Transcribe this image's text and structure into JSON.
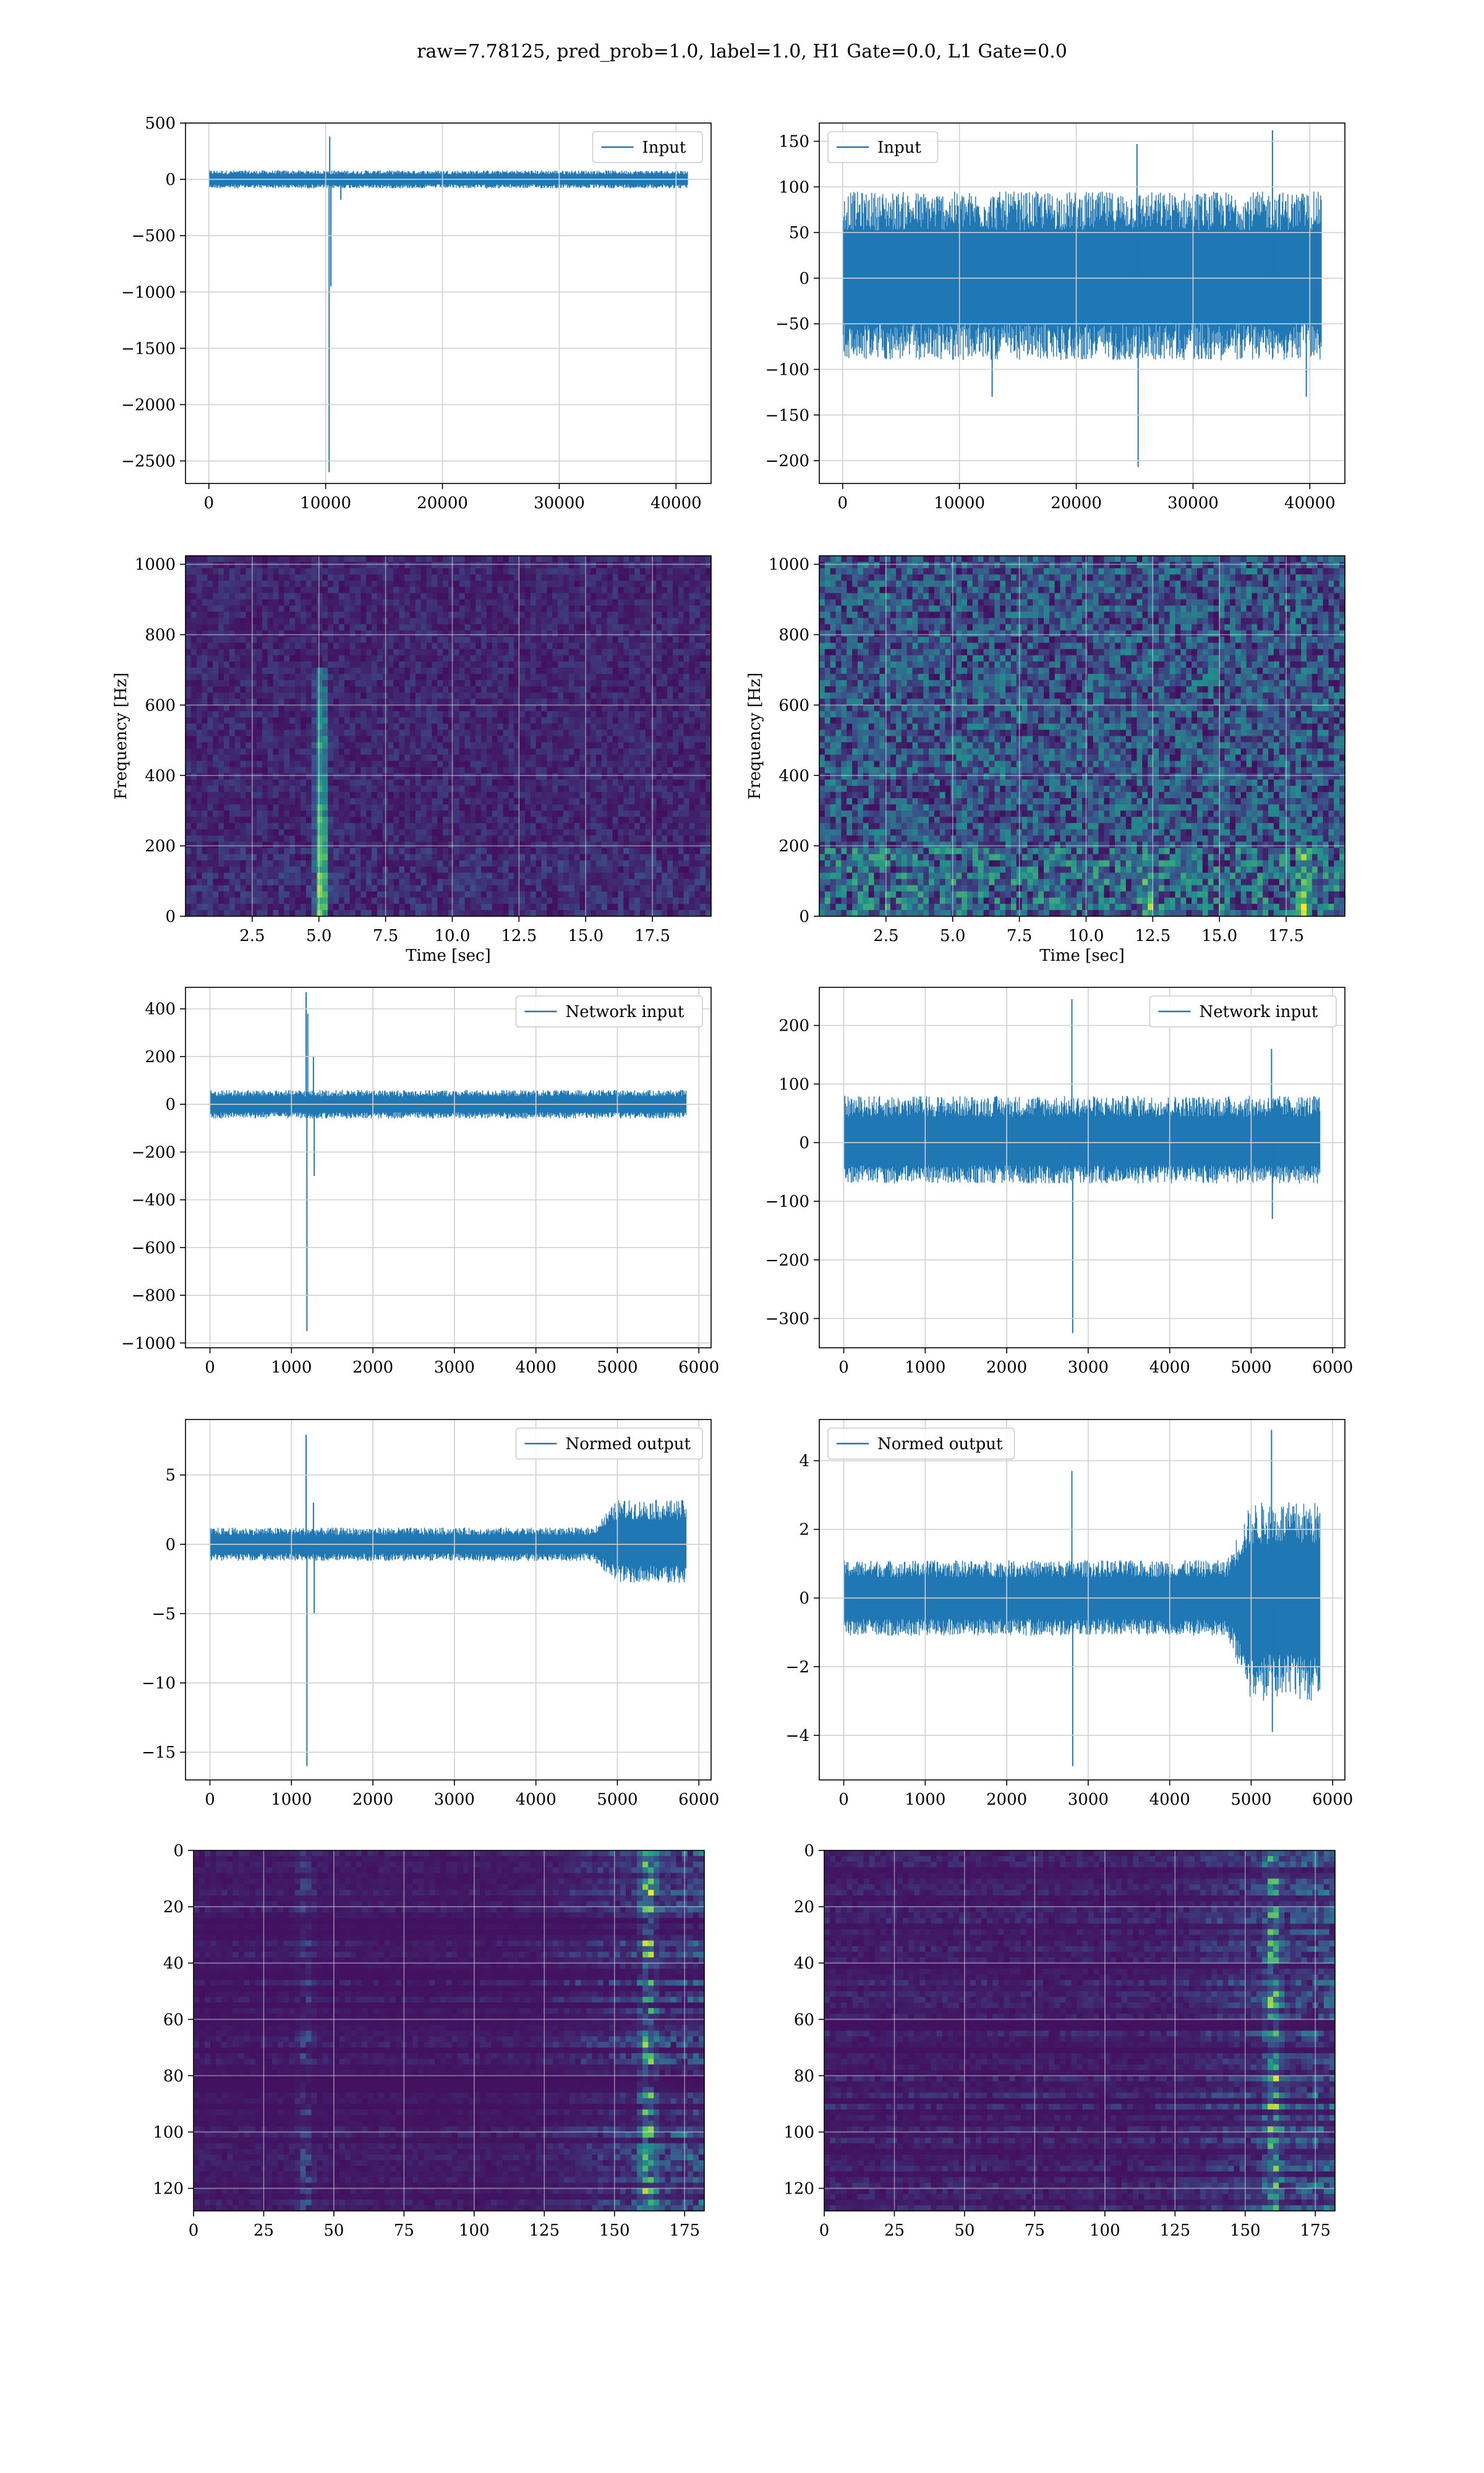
{
  "figure": {
    "title": "raw=7.78125, pred_prob=1.0, label=1.0, H1 Gate=0.0, L1 Gate=0.0"
  },
  "chart_data": [
    {
      "id": "h1-input",
      "type": "line",
      "legend": "Input",
      "xlim": [
        -2000,
        43000
      ],
      "ylim": [
        -2700,
        500
      ],
      "xticks": [
        0,
        10000,
        20000,
        30000,
        40000
      ],
      "xtick_labels": [
        "0",
        "10000",
        "20000",
        "30000",
        "40000"
      ],
      "yticks": [
        500,
        0,
        -500,
        -1000,
        -1500,
        -2000,
        -2500
      ],
      "ytick_labels": [
        "500",
        "0",
        "−500",
        "−1000",
        "−1500",
        "−2000",
        "−2500"
      ],
      "series": [
        {
          "values": {
            "n": 40960,
            "band": [
              -80,
              80
            ],
            "spikes": [
              [
                10300,
                -2600
              ],
              [
                10350,
                380
              ],
              [
                10450,
                -950
              ],
              [
                11300,
                -180
              ]
            ]
          }
        }
      ],
      "grid": true,
      "legend_position": "top-right"
    },
    {
      "id": "l1-input",
      "type": "line",
      "legend": "Input",
      "xlim": [
        -2000,
        43000
      ],
      "ylim": [
        -225,
        170
      ],
      "xticks": [
        0,
        10000,
        20000,
        30000,
        40000
      ],
      "xtick_labels": [
        "0",
        "10000",
        "20000",
        "30000",
        "40000"
      ],
      "yticks": [
        150,
        100,
        50,
        0,
        -50,
        -100,
        -150,
        -200
      ],
      "ytick_labels": [
        "150",
        "100",
        "50",
        "0",
        "−50",
        "−100",
        "−150",
        "−200"
      ],
      "series": [
        {
          "values": {
            "n": 40960,
            "band": [
              -90,
              95
            ],
            "spikes": [
              [
                25200,
                147
              ],
              [
                25300,
                -207
              ],
              [
                36800,
                162
              ],
              [
                12800,
                -130
              ],
              [
                39700,
                -130
              ]
            ]
          }
        }
      ],
      "grid": true,
      "legend_position": "top-left"
    },
    {
      "id": "h1-spectrogram",
      "type": "heatmap",
      "xlim": [
        0,
        19.7
      ],
      "ylim": [
        0,
        1024
      ],
      "xticks": [
        2.5,
        5.0,
        7.5,
        10.0,
        12.5,
        15.0,
        17.5
      ],
      "xtick_labels": [
        "2.5",
        "5.0",
        "7.5",
        "10.0",
        "12.5",
        "15.0",
        "17.5"
      ],
      "yticks": [
        0,
        200,
        400,
        600,
        800,
        1000
      ],
      "ytick_labels": [
        "0",
        "200",
        "400",
        "600",
        "800",
        "1000"
      ],
      "xlabel": "Time [sec]",
      "ylabel": "Frequency [Hz]",
      "features": [
        {
          "t": 5.1,
          "f_max": 700,
          "strength": 1.0
        }
      ],
      "noise": 0.15,
      "grid": true
    },
    {
      "id": "l1-spectrogram",
      "type": "heatmap",
      "xlim": [
        0,
        19.7
      ],
      "ylim": [
        0,
        1024
      ],
      "xticks": [
        2.5,
        5.0,
        7.5,
        10.0,
        12.5,
        15.0,
        17.5
      ],
      "xtick_labels": [
        "2.5",
        "5.0",
        "7.5",
        "10.0",
        "12.5",
        "15.0",
        "17.5"
      ],
      "yticks": [
        0,
        200,
        400,
        600,
        800,
        1000
      ],
      "ytick_labels": [
        "0",
        "200",
        "400",
        "600",
        "800",
        "1000"
      ],
      "xlabel": "Time [sec]",
      "ylabel": "Frequency [Hz]",
      "features": [
        {
          "t": 12.3,
          "f_max": 120,
          "strength": 0.7
        },
        {
          "t": 18.2,
          "f_max": 200,
          "strength": 0.7
        }
      ],
      "noise": 0.45,
      "grid": true
    },
    {
      "id": "h1-network-input",
      "type": "line",
      "legend": "Network input",
      "xlim": [
        -300,
        6150
      ],
      "ylim": [
        -1020,
        490
      ],
      "xticks": [
        0,
        1000,
        2000,
        3000,
        4000,
        5000,
        6000
      ],
      "xtick_labels": [
        "0",
        "1000",
        "2000",
        "3000",
        "4000",
        "5000",
        "6000"
      ],
      "yticks": [
        400,
        200,
        0,
        -200,
        -400,
        -600,
        -800,
        -1000
      ],
      "ytick_labels": [
        "400",
        "200",
        "0",
        "−200",
        "−400",
        "−600",
        "−800",
        "−1000"
      ],
      "series": [
        {
          "values": {
            "n": 5840,
            "band": [
              -60,
              60
            ],
            "spikes": [
              [
                1180,
                470
              ],
              [
                1190,
                -950
              ],
              [
                1200,
                380
              ],
              [
                1270,
                200
              ],
              [
                1280,
                -300
              ]
            ]
          }
        }
      ],
      "grid": true,
      "legend_position": "top-right"
    },
    {
      "id": "l1-network-input",
      "type": "line",
      "legend": "Network input",
      "xlim": [
        -300,
        6150
      ],
      "ylim": [
        -350,
        265
      ],
      "xticks": [
        0,
        1000,
        2000,
        3000,
        4000,
        5000,
        6000
      ],
      "xtick_labels": [
        "0",
        "1000",
        "2000",
        "3000",
        "4000",
        "5000",
        "6000"
      ],
      "yticks": [
        200,
        100,
        0,
        -100,
        -200,
        -300
      ],
      "ytick_labels": [
        "200",
        "100",
        "0",
        "−100",
        "−200",
        "−300"
      ],
      "series": [
        {
          "values": {
            "n": 5840,
            "band": [
              -70,
              80
            ],
            "spikes": [
              [
                2800,
                245
              ],
              [
                2810,
                -325
              ],
              [
                5250,
                160
              ],
              [
                5260,
                -130
              ]
            ]
          }
        }
      ],
      "grid": true,
      "legend_position": "top-right"
    },
    {
      "id": "h1-normed-output",
      "type": "line",
      "legend": "Normed output",
      "xlim": [
        -300,
        6150
      ],
      "ylim": [
        -17,
        9
      ],
      "xticks": [
        0,
        1000,
        2000,
        3000,
        4000,
        5000,
        6000
      ],
      "xtick_labels": [
        "0",
        "1000",
        "2000",
        "3000",
        "4000",
        "5000",
        "6000"
      ],
      "yticks": [
        5,
        0,
        -5,
        -10,
        -15
      ],
      "ytick_labels": [
        "5",
        "0",
        "−5",
        "−10",
        "−15"
      ],
      "series": [
        {
          "values": {
            "n": 5840,
            "band": [
              -1.2,
              1.2
            ],
            "late_band": [
              -2.8,
              3.2
            ],
            "late_start": 4700,
            "spikes": [
              [
                1180,
                7.9
              ],
              [
                1190,
                -16
              ],
              [
                1270,
                3
              ],
              [
                1280,
                -5
              ]
            ]
          }
        }
      ],
      "grid": true,
      "legend_position": "top-right"
    },
    {
      "id": "l1-normed-output",
      "type": "line",
      "legend": "Normed output",
      "xlim": [
        -300,
        6150
      ],
      "ylim": [
        -5.3,
        5.2
      ],
      "xticks": [
        0,
        1000,
        2000,
        3000,
        4000,
        5000,
        6000
      ],
      "xtick_labels": [
        "0",
        "1000",
        "2000",
        "3000",
        "4000",
        "5000",
        "6000"
      ],
      "yticks": [
        4,
        2,
        0,
        -2,
        -4
      ],
      "ytick_labels": [
        "4",
        "2",
        "0",
        "−2",
        "−4"
      ],
      "series": [
        {
          "values": {
            "n": 5840,
            "band": [
              -1.1,
              1.1
            ],
            "late_band": [
              -3.0,
              2.8
            ],
            "late_start": 4700,
            "spikes": [
              [
                2800,
                3.7
              ],
              [
                2810,
                -4.9
              ],
              [
                5250,
                4.9
              ],
              [
                5260,
                -3.9
              ]
            ]
          }
        }
      ],
      "grid": true,
      "legend_position": "top-left"
    },
    {
      "id": "h1-feature-map",
      "type": "heatmap",
      "xlim": [
        0,
        182
      ],
      "ylim": [
        128,
        0
      ],
      "xticks": [
        0,
        25,
        50,
        75,
        100,
        125,
        150,
        175
      ],
      "xtick_labels": [
        "0",
        "25",
        "50",
        "75",
        "100",
        "125",
        "150",
        "175"
      ],
      "yticks": [
        0,
        20,
        40,
        60,
        80,
        100,
        120
      ],
      "ytick_labels": [
        "0",
        "20",
        "40",
        "60",
        "80",
        "100",
        "120"
      ],
      "features": [
        {
          "col": 162,
          "strength": 1.0
        },
        {
          "col": 40,
          "strength": 0.25
        }
      ],
      "noise": 0.2,
      "grid": true
    },
    {
      "id": "l1-feature-map",
      "type": "heatmap",
      "xlim": [
        0,
        182
      ],
      "ylim": [
        128,
        0
      ],
      "xticks": [
        0,
        25,
        50,
        75,
        100,
        125,
        150,
        175
      ],
      "xtick_labels": [
        "0",
        "25",
        "50",
        "75",
        "100",
        "125",
        "150",
        "175"
      ],
      "yticks": [
        0,
        20,
        40,
        60,
        80,
        100,
        120
      ],
      "ytick_labels": [
        "0",
        "20",
        "40",
        "60",
        "80",
        "100",
        "120"
      ],
      "features": [
        {
          "col": 160,
          "strength": 0.9
        }
      ],
      "noise": 0.3,
      "grid": true
    }
  ]
}
